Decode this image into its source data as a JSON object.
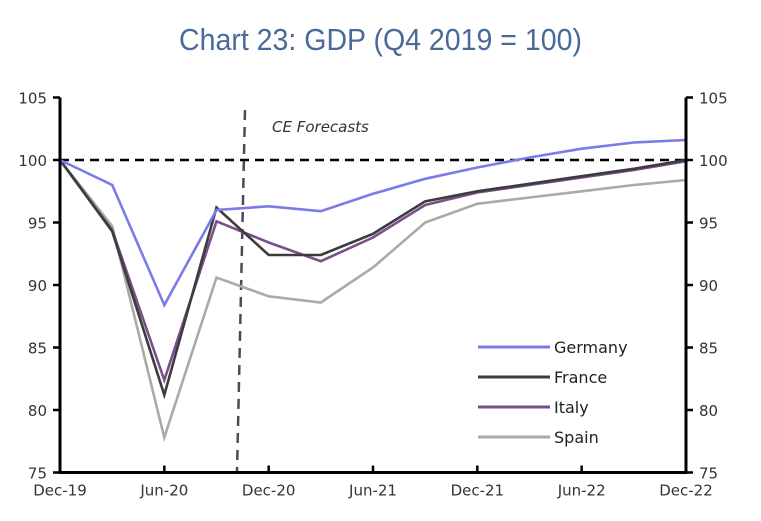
{
  "chart_data": {
    "type": "line",
    "title": "Chart 23: GDP (Q4 2019 = 100)",
    "xlabel": "",
    "ylabel": "",
    "x": [
      "Dec-19",
      "Mar-20",
      "Jun-20",
      "Sep-20",
      "Dec-20",
      "Mar-21",
      "Jun-21",
      "Sep-21",
      "Dec-21",
      "Mar-22",
      "Jun-22",
      "Sep-22",
      "Dec-22"
    ],
    "x_tick_labels": [
      "Dec-19",
      "Jun-20",
      "Dec-20",
      "Jun-21",
      "Dec-21",
      "Jun-22",
      "Dec-22"
    ],
    "ylim": [
      75,
      105
    ],
    "y_ticks": [
      75,
      80,
      85,
      90,
      95,
      100,
      105
    ],
    "y_tick_labels": [
      "75",
      "80",
      "85",
      "90",
      "95",
      "100",
      "105"
    ],
    "secondary_y_axis": true,
    "grid": false,
    "reference_line": {
      "y": 100,
      "style": "dashed"
    },
    "forecast_marker": {
      "x": "Nov-20",
      "label": "CE Forecasts"
    },
    "legend_position": "bottom-right",
    "series": [
      {
        "name": "Germany",
        "color": "#7b7be8",
        "values": [
          100,
          98.0,
          88.4,
          96.0,
          96.3,
          95.9,
          97.3,
          98.5,
          99.4,
          100.2,
          100.9,
          101.4,
          101.6
        ]
      },
      {
        "name": "France",
        "color": "#3c3c3c",
        "values": [
          100,
          94.3,
          81.2,
          96.2,
          92.4,
          92.4,
          94.1,
          96.7,
          97.5,
          98.1,
          98.7,
          99.3,
          100.0
        ]
      },
      {
        "name": "Italy",
        "color": "#7b4f8a",
        "values": [
          100,
          94.4,
          82.4,
          95.1,
          93.4,
          91.9,
          93.8,
          96.4,
          97.4,
          98.0,
          98.6,
          99.2,
          99.9
        ]
      },
      {
        "name": "Spain",
        "color": "#aaaaaa",
        "values": [
          100,
          94.7,
          77.8,
          90.6,
          89.1,
          88.6,
          91.4,
          95.0,
          96.5,
          97.0,
          97.5,
          98.0,
          98.4
        ]
      }
    ]
  }
}
